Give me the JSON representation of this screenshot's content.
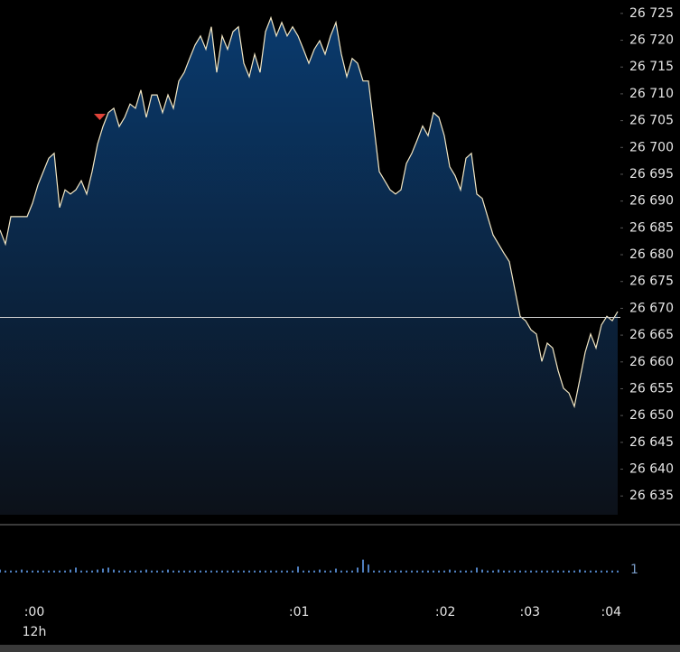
{
  "chart_data": {
    "type": "line",
    "color": "#f3e7c4",
    "fill_gradient": [
      "#0a3a6d",
      "#0c1119"
    ],
    "values": [
      26684.6,
      26682,
      26687.1,
      26687.1,
      26687.1,
      26687.1,
      26689.6,
      26693,
      26695.5,
      26698,
      26698.9,
      26688.8,
      26692.1,
      26691.3,
      26692.1,
      26693.8,
      26691.3,
      26695.5,
      26700.6,
      26703.9,
      26706.5,
      26707.3,
      26703.9,
      26705.6,
      26708.1,
      26707.3,
      26710.7,
      26705.6,
      26709.8,
      26709.8,
      26706.5,
      26709.8,
      26707.3,
      26712.4,
      26714,
      26716.6,
      26719.1,
      26720.8,
      26718.3,
      26722.5,
      26714,
      26720.8,
      26718.3,
      26721.6,
      26722.5,
      26715.7,
      26713.2,
      26717.4,
      26714,
      26721.6,
      26724.2,
      26720.8,
      26723.3,
      26720.8,
      26722.5,
      26720.8,
      26718.3,
      26715.7,
      26718.3,
      26719.9,
      26717.4,
      26720.8,
      26723.3,
      26717.4,
      26713.2,
      26716.6,
      26715.7,
      26712.4,
      26712.4,
      26704,
      26695.5,
      26693.8,
      26692.1,
      26691.3,
      26692.1,
      26697,
      26698.9,
      26701.4,
      26704,
      26702.2,
      26706.5,
      26705.6,
      26702.2,
      26696.4,
      26694.7,
      26692.1,
      26698,
      26698.9,
      26691.3,
      26690.5,
      26687.1,
      26683.7,
      26682,
      26680.3,
      26678.7,
      26673.6,
      26668.5,
      26667.7,
      26666,
      26665.2,
      26660.1,
      26663.5,
      26662.6,
      26658.4,
      26655.1,
      26654.2,
      26651.7,
      26656.7,
      26661.8,
      26665.2,
      26662.6,
      26666.9,
      26668.5,
      26667.7,
      26669.4
    ],
    "xlim": [
      0,
      114.5
    ],
    "xticks": [
      {
        "value": 6.33,
        "label": ":00"
      },
      {
        "value": 55.2,
        "label": ":01"
      },
      {
        "value": 82.2,
        "label": ":02"
      },
      {
        "value": 97.8,
        "label": ":03"
      },
      {
        "value": 112.8,
        "label": ":04"
      }
    ],
    "x_sublabel": "12h",
    "ylim": [
      26631.5,
      26727.5
    ],
    "yticks": [
      {
        "value": 26635,
        "label": "26 635"
      },
      {
        "value": 26640,
        "label": "26 640"
      },
      {
        "value": 26645,
        "label": "26 645"
      },
      {
        "value": 26650,
        "label": "26 650"
      },
      {
        "value": 26655,
        "label": "26 655"
      },
      {
        "value": 26660,
        "label": "26 660"
      },
      {
        "value": 26665,
        "label": "26 665"
      },
      {
        "value": 26670,
        "label": "26 670"
      },
      {
        "value": 26675,
        "label": "26 675"
      },
      {
        "value": 26680,
        "label": "26 680"
      },
      {
        "value": 26685,
        "label": "26 685"
      },
      {
        "value": 26690,
        "label": "26 690"
      },
      {
        "value": 26695,
        "label": "26 695"
      },
      {
        "value": 26700,
        "label": "26 700"
      },
      {
        "value": 26705,
        "label": "26 705"
      },
      {
        "value": 26710,
        "label": "26 710"
      },
      {
        "value": 26715,
        "label": "26 715"
      },
      {
        "value": 26720,
        "label": "26 720"
      },
      {
        "value": 26725,
        "label": "26 725"
      }
    ],
    "reference_line": 26668.3,
    "volume": {
      "color": "#4f7fbf",
      "ylim": [
        0,
        4
      ],
      "yticks": [
        1
      ],
      "values": [
        0.3,
        0.2,
        0.2,
        0.2,
        0.3,
        0.2,
        0.2,
        0.2,
        0.2,
        0.2,
        0.2,
        0.2,
        0.2,
        0.3,
        0.5,
        0.2,
        0.2,
        0.2,
        0.3,
        0.4,
        0.5,
        0.3,
        0.2,
        0.2,
        0.2,
        0.2,
        0.2,
        0.3,
        0.2,
        0.2,
        0.2,
        0.3,
        0.2,
        0.2,
        0.2,
        0.2,
        0.2,
        0.2,
        0.2,
        0.2,
        0.2,
        0.2,
        0.2,
        0.2,
        0.2,
        0.2,
        0.2,
        0.2,
        0.2,
        0.2,
        0.2,
        0.2,
        0.2,
        0.2,
        0.2,
        0.6,
        0.2,
        0.2,
        0.2,
        0.3,
        0.2,
        0.2,
        0.4,
        0.2,
        0.2,
        0.2,
        0.5,
        1.3,
        0.8,
        0.2,
        0.2,
        0.2,
        0.2,
        0.2,
        0.2,
        0.2,
        0.2,
        0.2,
        0.2,
        0.2,
        0.2,
        0.2,
        0.2,
        0.3,
        0.2,
        0.2,
        0.2,
        0.2,
        0.5,
        0.3,
        0.2,
        0.2,
        0.3,
        0.2,
        0.2,
        0.2,
        0.2,
        0.2,
        0.2,
        0.2,
        0.2,
        0.2,
        0.2,
        0.2,
        0.2,
        0.2,
        0.2,
        0.3,
        0.2,
        0.2,
        0.2,
        0.2,
        0.2,
        0.2,
        0.2
      ]
    }
  }
}
